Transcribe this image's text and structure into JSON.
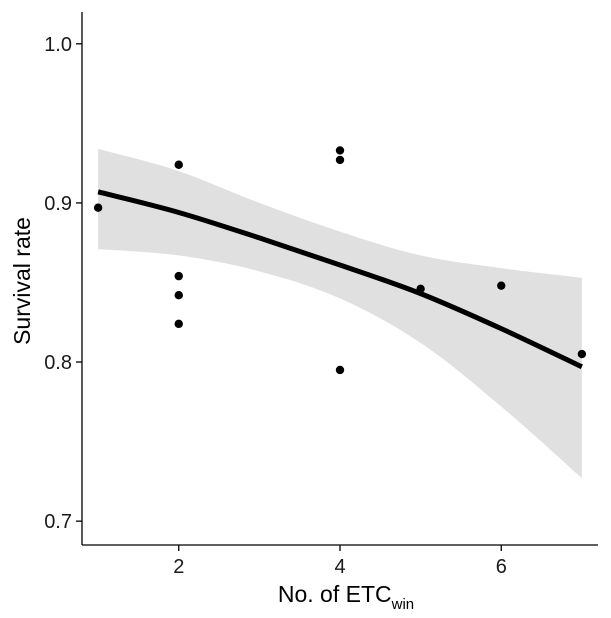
{
  "chart_data": {
    "type": "scatter",
    "title": "",
    "xlabel": "No. of ETC",
    "xlabel_subscript": "win",
    "ylabel": "Survival rate",
    "xlim": [
      0.8,
      7.2
    ],
    "ylim": [
      0.685,
      1.02
    ],
    "x_ticks": [
      2,
      4,
      6
    ],
    "y_ticks": [
      0.7,
      0.8,
      0.9,
      1.0
    ],
    "x_tick_labels": [
      "2",
      "4",
      "6"
    ],
    "y_tick_labels": [
      "0.7",
      "0.8",
      "0.9",
      "1.0"
    ],
    "grid": false,
    "legend": "none",
    "points": [
      {
        "x": 1,
        "y": 0.897
      },
      {
        "x": 2,
        "y": 0.924
      },
      {
        "x": 2,
        "y": 0.854
      },
      {
        "x": 2,
        "y": 0.842
      },
      {
        "x": 2,
        "y": 0.824
      },
      {
        "x": 4,
        "y": 0.933
      },
      {
        "x": 4,
        "y": 0.927
      },
      {
        "x": 4,
        "y": 0.795
      },
      {
        "x": 5,
        "y": 0.846
      },
      {
        "x": 6,
        "y": 0.848
      },
      {
        "x": 7,
        "y": 0.805
      }
    ],
    "fit_line": {
      "x": [
        1,
        2,
        3,
        4,
        5,
        6,
        7
      ],
      "y": [
        0.907,
        0.894,
        0.878,
        0.861,
        0.843,
        0.821,
        0.797
      ]
    },
    "confidence_band": {
      "x": [
        1,
        2,
        3,
        4,
        5,
        6,
        7
      ],
      "lower": [
        0.871,
        0.867,
        0.857,
        0.84,
        0.812,
        0.772,
        0.727
      ],
      "upper": [
        0.934,
        0.92,
        0.9,
        0.882,
        0.867,
        0.859,
        0.853
      ]
    },
    "colors": {
      "points": "#000000",
      "fit_line": "#000000",
      "band": "#e0e0e0",
      "axis": "#000000"
    }
  }
}
